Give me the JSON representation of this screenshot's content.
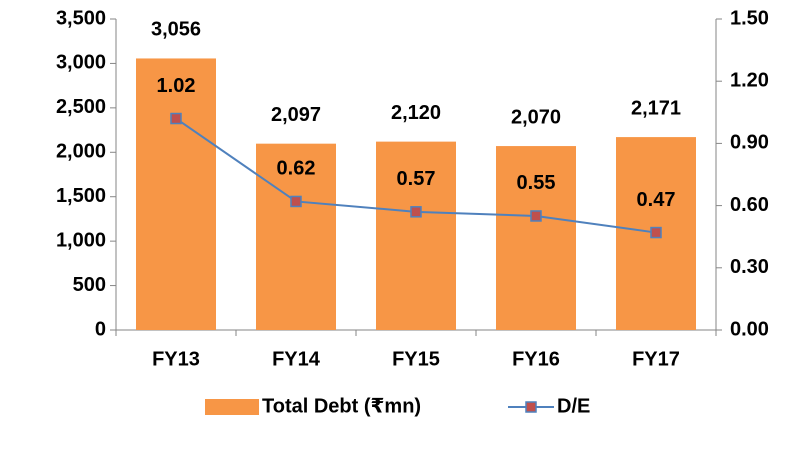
{
  "chart_data": {
    "type": "bar_line",
    "categories": [
      "FY13",
      "FY14",
      "FY15",
      "FY16",
      "FY17"
    ],
    "series": [
      {
        "name": "Total Debt (₹mn)",
        "type": "bar",
        "color": "#f79646",
        "values": [
          3056,
          2097,
          2120,
          2070,
          2171
        ],
        "value_labels": [
          "3,056",
          "2,097",
          "2,120",
          "2,070",
          "2,171"
        ]
      },
      {
        "name": "D/E",
        "type": "line",
        "axis": "y2",
        "color": "#4f81bd",
        "marker_color": "#c0504d",
        "values": [
          1.02,
          0.62,
          0.57,
          0.55,
          0.47
        ]
      }
    ],
    "ylim": [
      0,
      3500
    ],
    "yticks": [
      0,
      500,
      {
        "value": 1000,
        "label": "1,000"
      },
      {
        "value": 1500,
        "label": "1,500"
      },
      {
        "value": 2000,
        "label": "2,000"
      },
      {
        "value": 2500,
        "label": "2,500"
      },
      {
        "value": 3000,
        "label": "3,000"
      },
      {
        "value": 3500,
        "label": "3,500"
      }
    ],
    "y2lim": [
      0,
      1.5
    ],
    "y2ticks": [
      {
        "value": 0,
        "label": "0.00"
      },
      {
        "value": 0.3,
        "label": "0.30"
      },
      {
        "value": 0.6,
        "label": "0.60"
      },
      {
        "value": 0.9,
        "label": "0.90"
      },
      {
        "value": 1.2,
        "label": "1.20"
      },
      {
        "value": 1.5,
        "label": "1.50"
      }
    ],
    "legend": "bottom"
  }
}
